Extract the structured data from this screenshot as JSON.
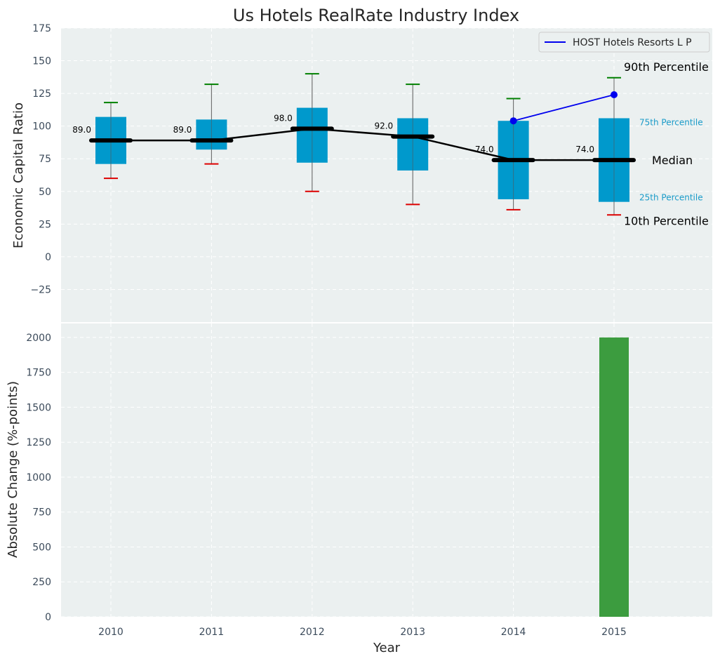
{
  "chart_data": [
    {
      "type": "box",
      "title": "Us Hotels RealRate Industry Index",
      "ylabel": "Economic Capital Ratio",
      "ylim": [
        -50,
        175
      ],
      "yticks": [
        -25,
        0,
        25,
        50,
        75,
        100,
        125,
        150,
        175
      ],
      "ytick_labels": [
        "−25",
        "0",
        "25",
        "50",
        "75",
        "100",
        "125",
        "150",
        "175"
      ],
      "grid": true,
      "categories": [
        "2010",
        "2011",
        "2012",
        "2013",
        "2014",
        "2015"
      ],
      "p10": [
        60,
        71,
        50,
        40,
        36,
        32
      ],
      "p25": [
        71,
        82,
        72,
        66,
        44,
        42
      ],
      "median": [
        89,
        89,
        98,
        92,
        74,
        74
      ],
      "p75": [
        107,
        105,
        114,
        106,
        104,
        106
      ],
      "p90": [
        118,
        132,
        140,
        132,
        121,
        137
      ],
      "median_labels": [
        "89.0",
        "89.0",
        "98.0",
        "92.0",
        "74.0",
        "74.0"
      ],
      "series": [
        {
          "name": "HOST Hotels Resorts L P",
          "x": [
            "2014",
            "2015"
          ],
          "values": [
            104,
            124
          ]
        }
      ],
      "legend_position": "top-right",
      "annotations": {
        "p90": "90th Percentile",
        "p75": "75th Percentile",
        "median": "Median",
        "p25": "25th Percentile",
        "p10": "10th Percentile"
      },
      "colors": {
        "box": "#0099cc",
        "median": "#000000",
        "series": "#0000ee",
        "whisker_high": "#008000",
        "whisker_low": "#dd0000",
        "background": "#ebf0f0"
      }
    },
    {
      "type": "bar",
      "xlabel": "Year",
      "ylabel": "Absolute Change (%-points)",
      "ylim": [
        0,
        2100
      ],
      "yticks": [
        0,
        250,
        500,
        750,
        1000,
        1250,
        1500,
        1750,
        2000
      ],
      "grid": true,
      "categories": [
        "2010",
        "2011",
        "2012",
        "2013",
        "2014",
        "2015"
      ],
      "values": [
        null,
        null,
        null,
        null,
        null,
        2000
      ],
      "colors": {
        "bar": "#3c9c3f"
      }
    }
  ]
}
